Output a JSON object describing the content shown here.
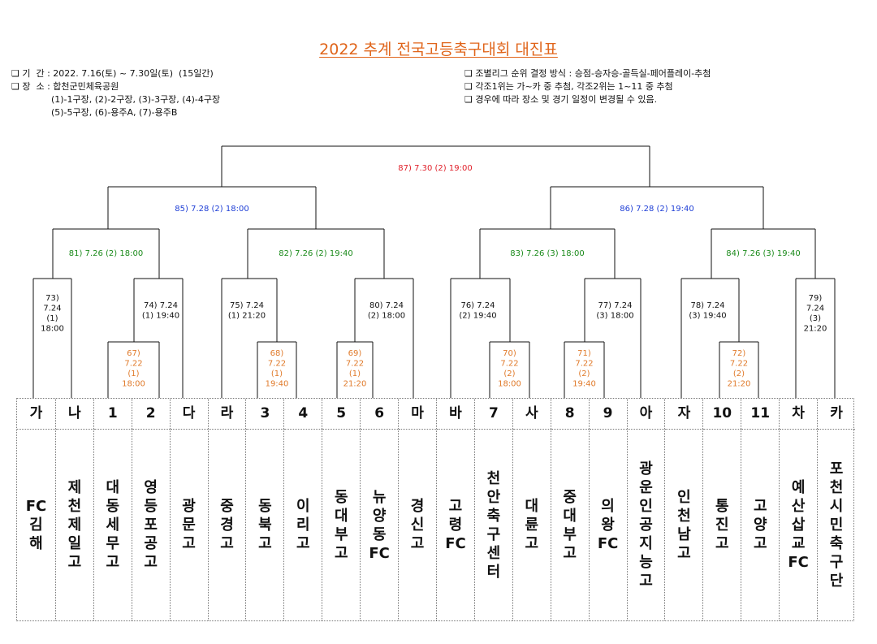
{
  "title": "2022 추계 전국고등축구대회 대진표",
  "info_left": [
    "❑ 기  간 : 2022. 7.16(토) ~ 7.30일(토)  (15일간)",
    "❑ 장  소 : 합천군민체육공원",
    "              (1)-1구장, (2)-2구장, (3)-3구장, (4)-4구장",
    "              (5)-5구장, (6)-용주A, (7)-용주B"
  ],
  "info_right": [
    "❑ 조별리그 순위 결정 방식 : 승점-승자승-골득실-페어플레이-추첨",
    "❑ 각조1위는 가~카 중 추첨, 각조2위는 1~11 중 추첨",
    "❑ 경우에 따라 장소 및 경기 일정이 변경될 수 있음."
  ],
  "colors": {
    "title": "#e0651b",
    "final": "#e0202a",
    "semifinal": "#1f3fd6",
    "quarterfinal": "#1a8a1a",
    "round16": "#111111",
    "round32": "#e07a2a"
  },
  "seeds": [
    "가",
    "나",
    "1",
    "2",
    "다",
    "라",
    "3",
    "4",
    "5",
    "6",
    "마",
    "바",
    "7",
    "사",
    "8",
    "9",
    "아",
    "자",
    "10",
    "11",
    "차",
    "카"
  ],
  "teams": [
    "FC김해",
    "제천제일고",
    "대동세무고",
    "영등포공고",
    "광문고",
    "중경고",
    "동북고",
    "이리고",
    "동대부고",
    "뉴양동FC",
    "경신고",
    "고령FC",
    "천안축구센터",
    "대륜고",
    "중대부고",
    "의왕FC",
    "광운인공지능고",
    "인천남고",
    "통진고",
    "고양고",
    "예산삽교FC",
    "포천시민축구단"
  ],
  "matches": {
    "m67": [
      "67)",
      "7.22",
      "(1)",
      "18:00"
    ],
    "m68": [
      "68)",
      "7.22",
      "(1)",
      "19:40"
    ],
    "m69": [
      "69)",
      "7.22",
      "(1)",
      "21:20"
    ],
    "m70": [
      "70)",
      "7.22",
      "(2)",
      "18:00"
    ],
    "m71": [
      "71)",
      "7.22",
      "(2)",
      "19:40"
    ],
    "m72": [
      "72)",
      "7.22",
      "(2)",
      "21:20"
    ],
    "m73": [
      "73)",
      "7.24",
      "(1)",
      "18:00"
    ],
    "m74": [
      "74) 7.24",
      "(1) 19:40"
    ],
    "m75": [
      "75) 7.24",
      "(1) 21:20"
    ],
    "m76": [
      "76) 7.24",
      "(2) 19:40"
    ],
    "m77": [
      "77) 7.24",
      "(3) 18:00"
    ],
    "m78": [
      "78) 7.24",
      "(3) 19:40"
    ],
    "m79": [
      "79)",
      "7.24",
      "(3)",
      "21:20"
    ],
    "m80": [
      "80) 7.24",
      "(2) 18:00"
    ],
    "m81": "81) 7.26 (2) 18:00",
    "m82": "82) 7.26 (2) 19:40",
    "m83": "83) 7.26 (3) 18:00",
    "m84": "84) 7.26 (3) 19:40",
    "m85": "85) 7.28 (2) 18:00",
    "m86": "86) 7.28 (2) 19:40",
    "m87": "87) 7.30 (2) 19:00"
  }
}
